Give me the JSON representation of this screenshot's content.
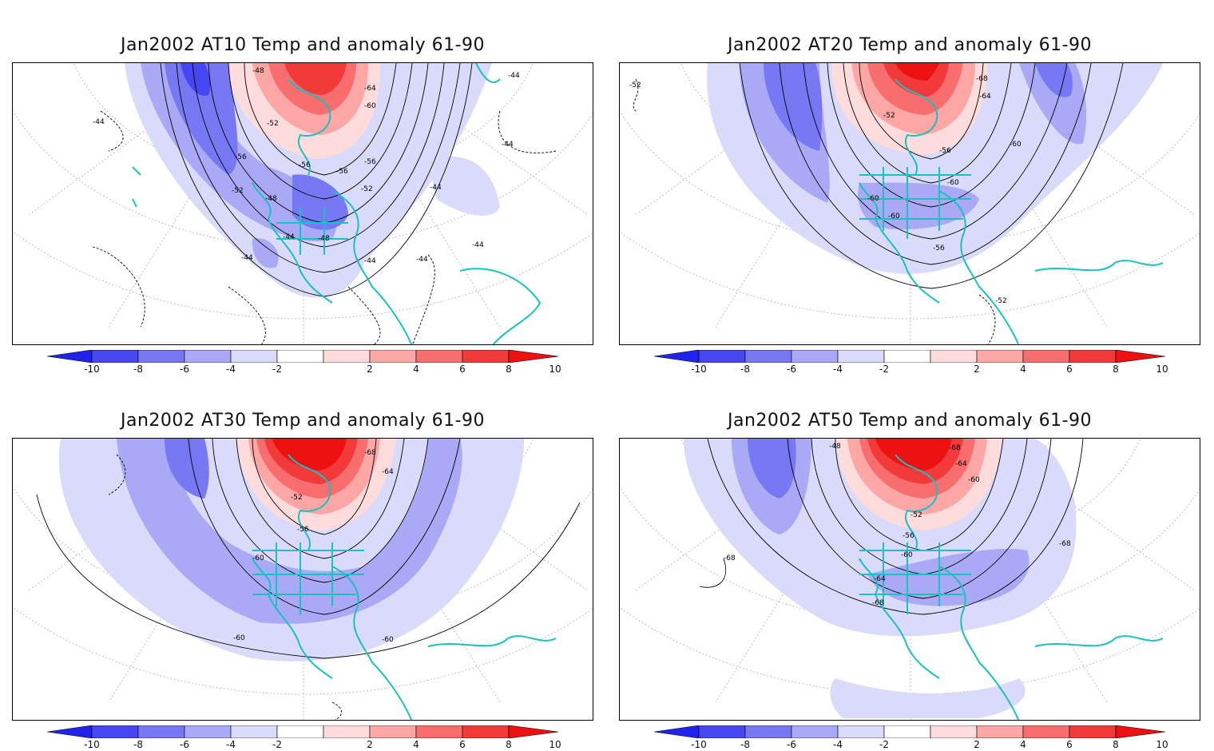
{
  "panels": [
    {
      "title": "Jan2002 AT10 Temp and anomaly 61-90",
      "contour_labels": [
        "-48",
        "-64",
        "-60",
        "-44",
        "-44",
        "-52",
        "-56",
        "-56",
        "-56",
        "-56",
        "-52",
        "-48",
        "-52",
        "-44",
        "-48",
        "-44",
        "-44",
        "-44",
        "-44",
        "-44",
        "-44"
      ]
    },
    {
      "title": "Jan2002 AT20 Temp and anomaly 61-90",
      "contour_labels": [
        "-52",
        "-68",
        "-64",
        "-52",
        "-56",
        "-60",
        "-60",
        "-60",
        "-60",
        "-56",
        "-52"
      ]
    },
    {
      "title": "Jan2002 AT30 Temp and anomaly 61-90",
      "contour_labels": [
        "-68",
        "-64",
        "-52",
        "-56",
        "-60",
        "-60",
        "-60"
      ]
    },
    {
      "title": "Jan2002 AT50 Temp and anomaly 61-90",
      "contour_labels": [
        "-48",
        "-68",
        "-64",
        "-60",
        "-52",
        "-56",
        "-60",
        "-68",
        "-64",
        "-68",
        "-68"
      ]
    }
  ],
  "colorbar": {
    "labels": [
      "-10",
      "-8",
      "-6",
      "-4",
      "-2",
      "2",
      "4",
      "6",
      "8",
      "10"
    ],
    "colors": [
      "#2222ee",
      "#4646f2",
      "#7878f4",
      "#a9a9f6",
      "#dadafa",
      "#ffffff",
      "#ffdcdc",
      "#fca6a6",
      "#f86e6e",
      "#f23a3a",
      "#ee1111"
    ]
  },
  "coast_color": "#19c1c1"
}
